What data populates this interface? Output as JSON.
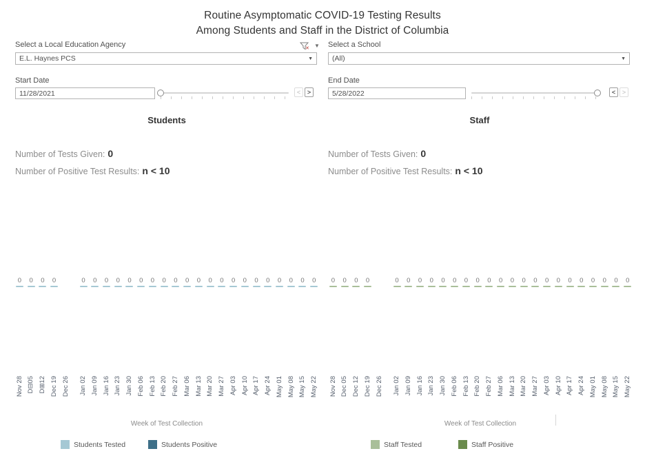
{
  "title": {
    "line1": "Routine Asymptomatic COVID-19 Testing Results",
    "line2": "Among Students and Staff in the District of Columbia"
  },
  "filters": {
    "lea": {
      "label": "Select a Local Education Agency",
      "value": "E.L. Haynes PCS"
    },
    "school": {
      "label": "Select a School",
      "value": "(All)"
    },
    "start": {
      "label": "Start Date",
      "value": "11/28/2021"
    },
    "end": {
      "label": "End Date",
      "value": "5/28/2022"
    }
  },
  "students": {
    "header": "Students",
    "tests_given_label": "Number of Tests Given:",
    "tests_given_value": "0",
    "positive_label": "Number of Positive Test Results:",
    "positive_value": "n < 10"
  },
  "staff": {
    "header": "Staff",
    "tests_given_label": "Number of Tests Given:",
    "tests_given_value": "0",
    "positive_label": "Number of Positive Test Results:",
    "positive_value": "n < 10"
  },
  "chart_data": [
    {
      "type": "bar",
      "title": "Students",
      "xlabel": "Week of Test Collection",
      "categories": [
        "Nov 28",
        "Dec 05",
        "Dec 12",
        "Dec 19",
        "Dec 26",
        "Jan 02",
        "Jan 09",
        "Jan 16",
        "Jan 23",
        "Jan 30",
        "Feb 06",
        "Feb 13",
        "Feb 20",
        "Feb 27",
        "Mar 06",
        "Mar 13",
        "Mar 20",
        "Mar 27",
        "Apr 03",
        "Apr 10",
        "Apr 17",
        "Apr 24",
        "May 01",
        "May 08",
        "May 15",
        "May 22"
      ],
      "display_labels": [
        "Nov 28",
        "D⊟05",
        "D⊞12",
        "Dec 19",
        "Dec 26",
        "Jan 02",
        "Jan 09",
        "Jan 16",
        "Jan 23",
        "Jan 30",
        "Feb 06",
        "Feb 13",
        "Feb 20",
        "Feb 27",
        "Mar 06",
        "Mar 13",
        "Mar 20",
        "Mar 27",
        "Apr 03",
        "Apr 10",
        "Apr 17",
        "Apr 24",
        "May 01",
        "May 08",
        "May 15",
        "May 22"
      ],
      "pane_break_index": 5,
      "bar_value_label": "0",
      "series": [
        {
          "name": "Students Tested",
          "color": "#A5C8D4",
          "values": [
            0,
            0,
            0,
            0,
            null,
            0,
            0,
            0,
            0,
            0,
            0,
            0,
            0,
            0,
            0,
            0,
            0,
            0,
            0,
            0,
            0,
            0,
            0,
            0,
            0,
            0
          ]
        },
        {
          "name": "Students Positive",
          "color": "#3E6F88",
          "suppressed_note": "n < 10",
          "values": []
        }
      ],
      "ylim": [
        0,
        0
      ],
      "grid": false,
      "legend_position": "bottom"
    },
    {
      "type": "bar",
      "title": "Staff",
      "xlabel": "Week of Test Collection",
      "categories": [
        "Nov 28",
        "Dec 05",
        "Dec 12",
        "Dec 19",
        "Dec 26",
        "Jan 02",
        "Jan 09",
        "Jan 16",
        "Jan 23",
        "Jan 30",
        "Feb 06",
        "Feb 13",
        "Feb 20",
        "Feb 27",
        "Mar 06",
        "Mar 13",
        "Mar 20",
        "Mar 27",
        "Apr 03",
        "Apr 10",
        "Apr 17",
        "Apr 24",
        "May 01",
        "May 08",
        "May 15",
        "May 22"
      ],
      "display_labels": [
        "Nov 28",
        "Dec 05",
        "Dec 12",
        "Dec 19",
        "Dec 26",
        "Jan 02",
        "Jan 09",
        "Jan 16",
        "Jan 23",
        "Jan 30",
        "Feb 06",
        "Feb 13",
        "Feb 20",
        "Feb 27",
        "Mar 06",
        "Mar 13",
        "Mar 20",
        "Mar 27",
        "Apr 03",
        "Apr 10",
        "Apr 17",
        "Apr 24",
        "May 01",
        "May 08",
        "May 15",
        "May 22"
      ],
      "pane_break_index": 5,
      "bar_value_label": "0",
      "series": [
        {
          "name": "Staff Tested",
          "color": "#A9BF99",
          "values": [
            0,
            0,
            0,
            0,
            null,
            0,
            0,
            0,
            0,
            0,
            0,
            0,
            0,
            0,
            0,
            0,
            0,
            0,
            0,
            0,
            0,
            0,
            0,
            0,
            0,
            0
          ]
        },
        {
          "name": "Staff Positive",
          "color": "#6A8B4C",
          "suppressed_note": "n < 10",
          "values": []
        }
      ],
      "ylim": [
        0,
        0
      ],
      "grid": false,
      "legend_position": "bottom"
    }
  ],
  "legend": [
    {
      "label": "Students Tested",
      "color": "#A5C8D4"
    },
    {
      "label": "Students Positive",
      "color": "#3E6F88"
    },
    {
      "label": "Staff Tested",
      "color": "#A9BF99"
    },
    {
      "label": "Staff Positive",
      "color": "#6A8B4C"
    }
  ]
}
